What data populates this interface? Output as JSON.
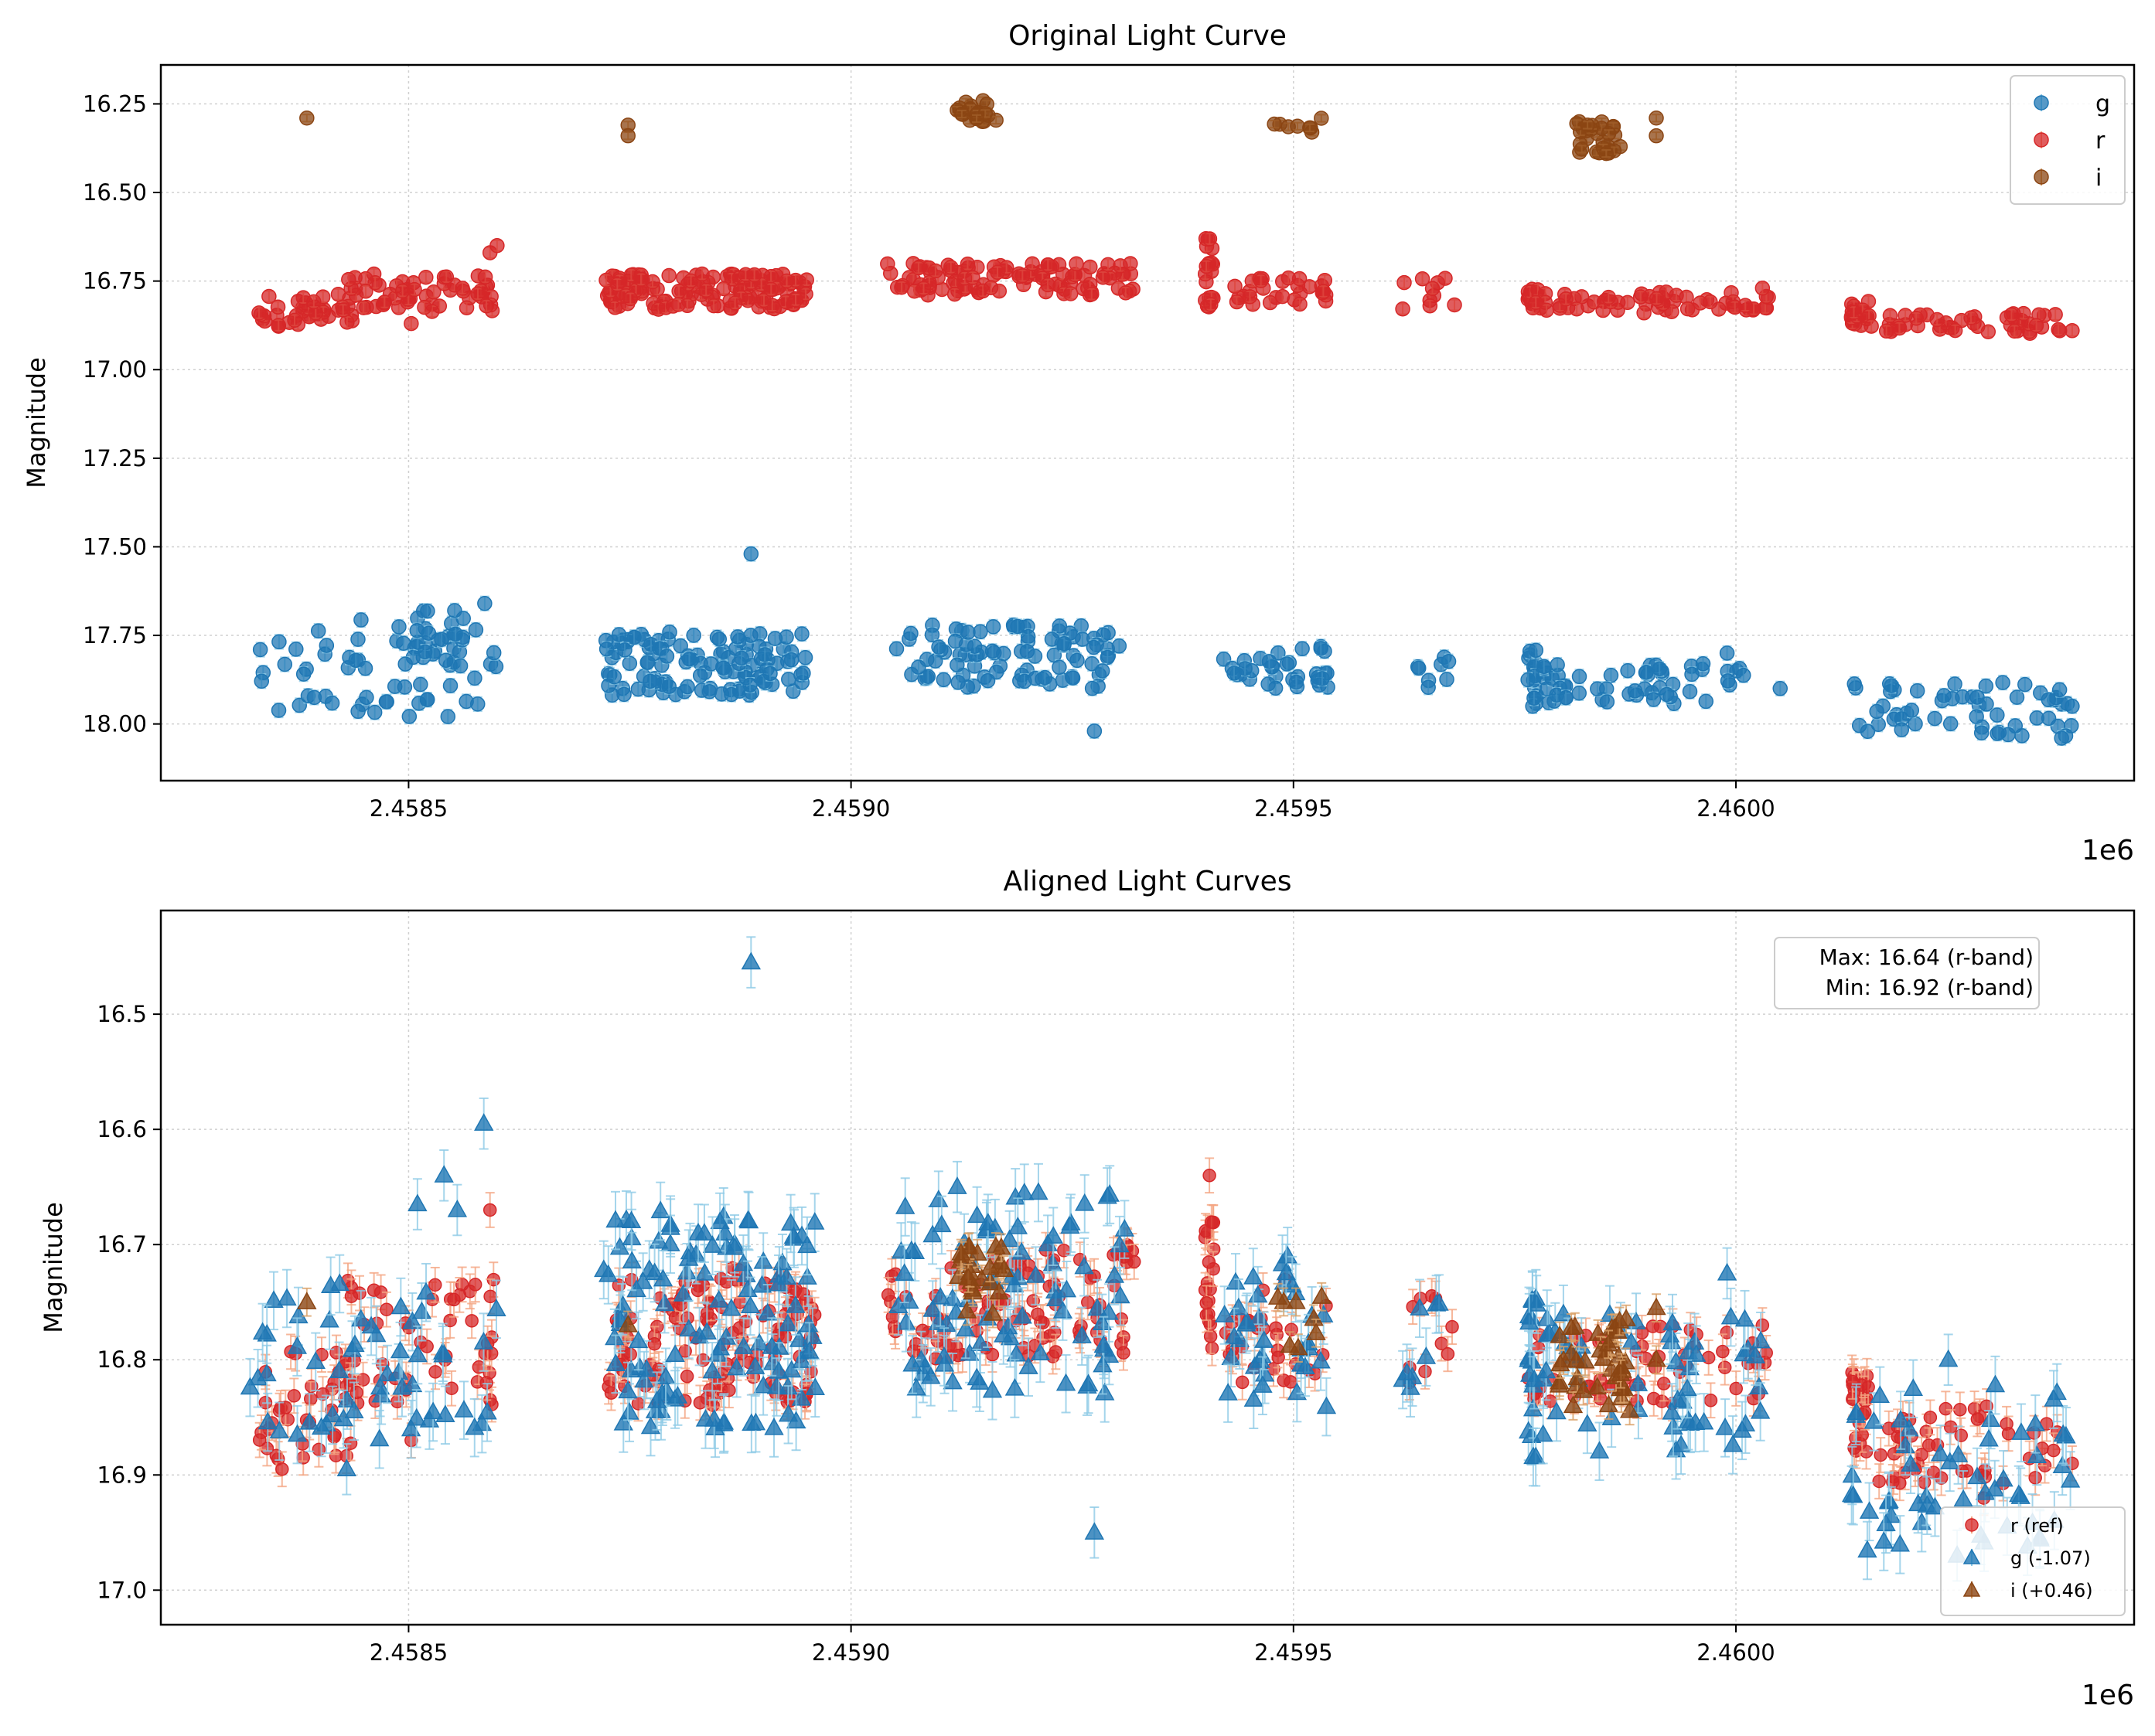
{
  "chart_data": [
    {
      "type": "scatter",
      "title": "Original Light Curve",
      "xlabel": "",
      "ylabel": "Magnitude",
      "x_offset_label": "1e6",
      "xlim": [
        2458220,
        2460450
      ],
      "ylim": [
        18.16,
        16.14
      ],
      "y_inverted": true,
      "xticks": [
        2458500,
        2459000,
        2459500,
        2460000,
        2460500
      ],
      "xtick_labels": [
        "2.4585",
        "2.4590",
        "2.4595",
        "2.4600"
      ],
      "yticks": [
        16.25,
        16.5,
        16.75,
        17.0,
        17.25,
        17.5,
        17.75,
        18.0
      ],
      "ytick_labels": [
        "16.25",
        "16.50",
        "16.75",
        "17.00",
        "17.25",
        "17.50",
        "17.75",
        "18.00"
      ],
      "grid": true,
      "legend": {
        "position": "top-right",
        "entries": [
          "g",
          "r",
          "i"
        ]
      },
      "series": [
        {
          "name": "g",
          "marker": "circle",
          "color": "#1f77b4",
          "err_color": "#8ecae6",
          "clusters": [
            {
              "x0": 2458330,
              "x1": 2458600,
              "y0": 17.98,
              "y1": 17.7,
              "n": 60,
              "err": 0.02
            },
            {
              "x0": 2458480,
              "x1": 2458600,
              "y0": 17.85,
              "y1": 17.68,
              "n": 20,
              "err": 0.02
            },
            {
              "x0": 2458720,
              "x1": 2458950,
              "y0": 17.92,
              "y1": 17.74,
              "n": 120,
              "err": 0.02
            },
            {
              "x0": 2459050,
              "x1": 2459300,
              "y0": 17.9,
              "y1": 17.72,
              "n": 90,
              "err": 0.02
            },
            {
              "x0": 2459420,
              "x1": 2459540,
              "y0": 17.9,
              "y1": 17.78,
              "n": 35,
              "err": 0.02
            },
            {
              "x0": 2459620,
              "x1": 2459680,
              "y0": 17.9,
              "y1": 17.8,
              "n": 8,
              "err": 0.02
            },
            {
              "x0": 2459765,
              "x1": 2459775,
              "y0": 17.97,
              "y1": 17.79,
              "n": 18,
              "err": 0.02
            },
            {
              "x0": 2459780,
              "x1": 2460030,
              "y0": 17.95,
              "y1": 17.83,
              "n": 55,
              "err": 0.02
            },
            {
              "x0": 2460130,
              "x1": 2460380,
              "y0": 18.04,
              "y1": 17.88,
              "n": 55,
              "err": 0.02
            }
          ],
          "points": [
            {
              "x": 2458887,
              "y": 17.52,
              "err": 0.02
            },
            {
              "x": 2458552,
              "y": 17.68,
              "err": 0.02
            },
            {
              "x": 2458586,
              "y": 17.66,
              "err": 0.02
            },
            {
              "x": 2459275,
              "y": 18.02,
              "err": 0.02
            },
            {
              "x": 2459303,
              "y": 17.78,
              "err": 0.02
            },
            {
              "x": 2460368,
              "y": 18.04,
              "err": 0.02
            },
            {
              "x": 2460380,
              "y": 17.95,
              "err": 0.02
            },
            {
              "x": 2459990,
              "y": 17.8,
              "err": 0.02
            },
            {
              "x": 2460050,
              "y": 17.9,
              "err": 0.02
            }
          ]
        },
        {
          "name": "r",
          "marker": "circle",
          "color": "#d62728",
          "err_color": "#f4a582",
          "clusters": [
            {
              "x0": 2458330,
              "x1": 2458440,
              "y0": 16.88,
              "y1": 16.79,
              "n": 40,
              "err": 0.015
            },
            {
              "x0": 2458420,
              "x1": 2458600,
              "y0": 16.84,
              "y1": 16.73,
              "n": 60,
              "err": 0.015
            },
            {
              "x0": 2458720,
              "x1": 2458950,
              "y0": 16.83,
              "y1": 16.73,
              "n": 150,
              "err": 0.015
            },
            {
              "x0": 2459040,
              "x1": 2459320,
              "y0": 16.79,
              "y1": 16.7,
              "n": 110,
              "err": 0.015
            },
            {
              "x0": 2459400,
              "x1": 2459410,
              "y0": 16.83,
              "y1": 16.63,
              "n": 20,
              "err": 0.015
            },
            {
              "x0": 2459420,
              "x1": 2459540,
              "y0": 16.82,
              "y1": 16.74,
              "n": 30,
              "err": 0.015
            },
            {
              "x0": 2459620,
              "x1": 2459690,
              "y0": 16.83,
              "y1": 16.74,
              "n": 10,
              "err": 0.015
            },
            {
              "x0": 2459765,
              "x1": 2459780,
              "y0": 16.83,
              "y1": 16.76,
              "n": 18,
              "err": 0.015
            },
            {
              "x0": 2459780,
              "x1": 2460040,
              "y0": 16.84,
              "y1": 16.78,
              "n": 60,
              "err": 0.015
            },
            {
              "x0": 2460130,
              "x1": 2460150,
              "y0": 16.88,
              "y1": 16.8,
              "n": 20,
              "err": 0.015
            },
            {
              "x0": 2460150,
              "x1": 2460370,
              "y0": 16.9,
              "y1": 16.84,
              "n": 50,
              "err": 0.015
            }
          ],
          "points": [
            {
              "x": 2458592,
              "y": 16.67,
              "err": 0.015
            },
            {
              "x": 2458503,
              "y": 16.87,
              "err": 0.015
            },
            {
              "x": 2458588,
              "y": 16.82,
              "err": 0.015
            },
            {
              "x": 2458600,
              "y": 16.65,
              "err": 0.015
            },
            {
              "x": 2460030,
              "y": 16.77,
              "err": 0.015
            },
            {
              "x": 2460380,
              "y": 16.89,
              "err": 0.015
            }
          ]
        },
        {
          "name": "i",
          "marker": "circle",
          "color": "#8b4513",
          "err_color": "#d9a066",
          "clusters": [
            {
              "x0": 2459120,
              "x1": 2459175,
              "y0": 16.3,
              "y1": 16.24,
              "n": 22,
              "err": 0.01
            },
            {
              "x0": 2459475,
              "x1": 2459535,
              "y0": 16.33,
              "y1": 16.28,
              "n": 8,
              "err": 0.01
            },
            {
              "x0": 2459820,
              "x1": 2459870,
              "y0": 16.39,
              "y1": 16.3,
              "n": 30,
              "err": 0.01
            }
          ],
          "points": [
            {
              "x": 2458385,
              "y": 16.29,
              "err": 0.01
            },
            {
              "x": 2458748,
              "y": 16.31,
              "err": 0.01
            },
            {
              "x": 2458748,
              "y": 16.34,
              "err": 0.01
            },
            {
              "x": 2459910,
              "y": 16.29,
              "err": 0.01
            },
            {
              "x": 2459910,
              "y": 16.34,
              "err": 0.01
            }
          ]
        }
      ]
    },
    {
      "type": "scatter",
      "title": "Aligned Light Curves",
      "xlabel": "",
      "ylabel": "Magnitude",
      "x_offset_label": "1e6",
      "xlim": [
        2458220,
        2460450
      ],
      "ylim": [
        17.03,
        16.41
      ],
      "y_inverted": true,
      "xticks": [
        2458500,
        2459000,
        2459500,
        2460000
      ],
      "xtick_labels": [
        "2.4585",
        "2.4590",
        "2.4595",
        "2.4600"
      ],
      "yticks": [
        16.5,
        16.6,
        16.7,
        16.8,
        16.9,
        17.0
      ],
      "ytick_labels": [
        "16.5",
        "16.6",
        "16.7",
        "16.8",
        "16.9",
        "17.0"
      ],
      "grid": true,
      "annotation": [
        "Max: 16.64 (r-band)",
        "Min: 16.92 (r-band)"
      ],
      "legend": {
        "position": "bottom-right",
        "entries": [
          "r (ref)",
          "g (-1.07)",
          "i (+0.46)"
        ]
      },
      "series": [
        {
          "name": "r (ref)",
          "marker": "circle",
          "color": "#d62728",
          "err_color": "#f4a582",
          "clusters": [
            {
              "x0": 2458330,
              "x1": 2458440,
              "y0": 16.89,
              "y1": 16.79,
              "n": 40,
              "err": 0.015
            },
            {
              "x0": 2458420,
              "x1": 2458600,
              "y0": 16.84,
              "y1": 16.73,
              "n": 50,
              "err": 0.015
            },
            {
              "x0": 2458720,
              "x1": 2458960,
              "y0": 16.84,
              "y1": 16.72,
              "n": 130,
              "err": 0.015
            },
            {
              "x0": 2459040,
              "x1": 2459320,
              "y0": 16.8,
              "y1": 16.7,
              "n": 100,
              "err": 0.015
            },
            {
              "x0": 2459400,
              "x1": 2459410,
              "y0": 16.82,
              "y1": 16.68,
              "n": 20,
              "err": 0.015
            },
            {
              "x0": 2459420,
              "x1": 2459540,
              "y0": 16.82,
              "y1": 16.73,
              "n": 30,
              "err": 0.015
            },
            {
              "x0": 2459620,
              "x1": 2459690,
              "y0": 16.83,
              "y1": 16.74,
              "n": 10,
              "err": 0.015
            },
            {
              "x0": 2459765,
              "x1": 2460040,
              "y0": 16.84,
              "y1": 16.77,
              "n": 60,
              "err": 0.015
            },
            {
              "x0": 2460130,
              "x1": 2460150,
              "y0": 16.88,
              "y1": 16.81,
              "n": 25,
              "err": 0.015
            },
            {
              "x0": 2460150,
              "x1": 2460370,
              "y0": 16.91,
              "y1": 16.84,
              "n": 50,
              "err": 0.015
            }
          ],
          "points": [
            {
              "x": 2459405,
              "y": 16.64,
              "err": 0.015
            },
            {
              "x": 2460280,
              "y": 16.92,
              "err": 0.015
            },
            {
              "x": 2458592,
              "y": 16.67,
              "err": 0.015
            },
            {
              "x": 2458503,
              "y": 16.87,
              "err": 0.015
            },
            {
              "x": 2458588,
              "y": 16.82,
              "err": 0.015
            },
            {
              "x": 2458357,
              "y": 16.895,
              "err": 0.015
            },
            {
              "x": 2460030,
              "y": 16.77,
              "err": 0.015
            },
            {
              "x": 2460380,
              "y": 16.89,
              "err": 0.015
            }
          ]
        },
        {
          "name": "g (-1.07)",
          "marker": "triangle",
          "color": "#1f77b4",
          "err_color": "#8ecae6",
          "clusters": [
            {
              "x0": 2458320,
              "x1": 2458600,
              "y0": 16.87,
              "y1": 16.73,
              "n": 55,
              "err": 0.025
            },
            {
              "x0": 2458720,
              "x1": 2458960,
              "y0": 16.86,
              "y1": 16.67,
              "n": 120,
              "err": 0.025
            },
            {
              "x0": 2459050,
              "x1": 2459310,
              "y0": 16.83,
              "y1": 16.65,
              "n": 90,
              "err": 0.025
            },
            {
              "x0": 2459420,
              "x1": 2459540,
              "y0": 16.85,
              "y1": 16.71,
              "n": 35,
              "err": 0.025
            },
            {
              "x0": 2459620,
              "x1": 2459680,
              "y0": 16.83,
              "y1": 16.73,
              "n": 8,
              "err": 0.025
            },
            {
              "x0": 2459765,
              "x1": 2459775,
              "y0": 16.9,
              "y1": 16.73,
              "n": 18,
              "err": 0.025
            },
            {
              "x0": 2459780,
              "x1": 2460030,
              "y0": 16.88,
              "y1": 16.76,
              "n": 55,
              "err": 0.025
            },
            {
              "x0": 2460130,
              "x1": 2460380,
              "y0": 16.97,
              "y1": 16.82,
              "n": 55,
              "err": 0.025
            }
          ],
          "points": [
            {
              "x": 2458887,
              "y": 16.455,
              "err": 0.022
            },
            {
              "x": 2458585,
              "y": 16.595,
              "err": 0.022
            },
            {
              "x": 2458540,
              "y": 16.64,
              "err": 0.022
            },
            {
              "x": 2458510,
              "y": 16.665,
              "err": 0.022
            },
            {
              "x": 2458555,
              "y": 16.67,
              "err": 0.022
            },
            {
              "x": 2459275,
              "y": 16.95,
              "err": 0.022
            },
            {
              "x": 2458430,
              "y": 16.895,
              "err": 0.022
            },
            {
              "x": 2459990,
              "y": 16.725,
              "err": 0.022
            },
            {
              "x": 2459120,
              "y": 16.65,
              "err": 0.022
            },
            {
              "x": 2460250,
              "y": 16.97,
              "err": 0.022
            },
            {
              "x": 2460240,
              "y": 16.8,
              "err": 0.022
            }
          ]
        },
        {
          "name": "i (+0.46)",
          "marker": "triangle",
          "color": "#8b4513",
          "err_color": "#d9a066",
          "clusters": [
            {
              "x0": 2459120,
              "x1": 2459175,
              "y0": 16.76,
              "y1": 16.7,
              "n": 24,
              "err": 0.012
            },
            {
              "x0": 2459475,
              "x1": 2459535,
              "y0": 16.79,
              "y1": 16.74,
              "n": 8,
              "err": 0.012
            },
            {
              "x0": 2459800,
              "x1": 2459880,
              "y0": 16.85,
              "y1": 16.76,
              "n": 40,
              "err": 0.012
            }
          ],
          "points": [
            {
              "x": 2458385,
              "y": 16.75,
              "err": 0.012
            },
            {
              "x": 2458748,
              "y": 16.77,
              "err": 0.012
            },
            {
              "x": 2459910,
              "y": 16.755,
              "err": 0.012
            },
            {
              "x": 2459910,
              "y": 16.8,
              "err": 0.012
            }
          ]
        }
      ]
    }
  ]
}
